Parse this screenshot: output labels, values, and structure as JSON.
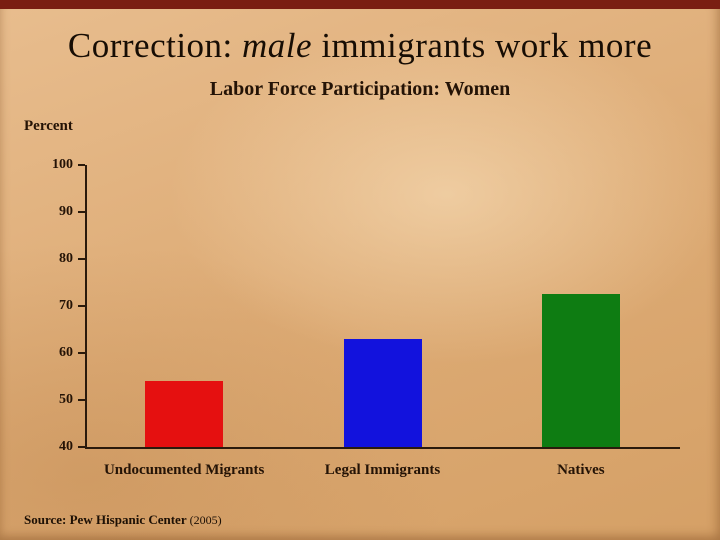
{
  "slide": {
    "title_prefix": "Correction: ",
    "title_italic": "male",
    "title_suffix": " immigrants work more",
    "subtitle": "Labor Force Participation: Women",
    "source_label": "Source: Pew Hispanic Center",
    "source_year": " (2005)"
  },
  "chart_data": {
    "type": "bar",
    "title": "Labor Force Participation: Women",
    "xlabel": "",
    "ylabel": "Percent",
    "categories": [
      "Undocumented Migrants",
      "Legal Immigrants",
      "Natives"
    ],
    "values": [
      54,
      63,
      72.5
    ],
    "bar_colors": [
      "#e51010",
      "#1212dd",
      "#0e7c12"
    ],
    "ylim": [
      40,
      100
    ],
    "yticks": [
      100,
      90,
      80,
      70,
      60,
      50,
      40
    ],
    "grid": false,
    "legend": false,
    "accent_top_bar_color": "#7a1e12",
    "background_color": "#ddab75",
    "text_color": "#241306"
  }
}
